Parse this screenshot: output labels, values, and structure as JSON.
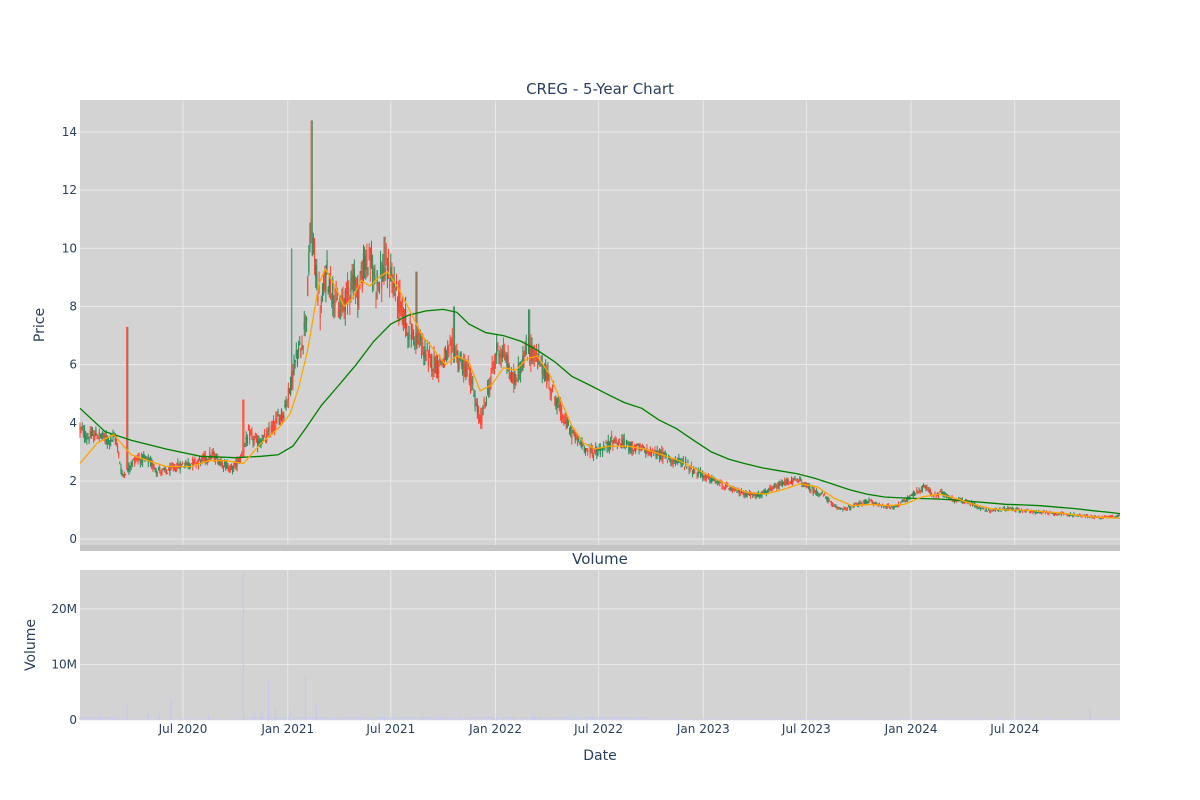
{
  "colors": {
    "plot_bg": "#d3d3d3",
    "grid": "#e8e8e8",
    "up": "#2e8b57",
    "down": "#ff4433",
    "ma_short": "#ffa500",
    "ma_long": "#008000",
    "volume": "#c8c8ee",
    "text": "#2a3f5f"
  },
  "chart_data": [
    {
      "type": "candlestick",
      "title": "CREG - 5-Year Chart",
      "ylabel": "Price",
      "ylim": [
        -0.2,
        15.1
      ],
      "yticks": [
        0,
        2,
        4,
        6,
        8,
        10,
        12,
        14
      ],
      "xlim": [
        "2020-01-02",
        "2025-01-02"
      ],
      "grid": true,
      "price_path": [
        [
          "2020-01-02",
          3.8
        ],
        [
          "2020-01-15",
          3.5
        ],
        [
          "2020-02-01",
          3.6
        ],
        [
          "2020-02-20",
          3.4
        ],
        [
          "2020-03-05",
          3.5
        ],
        [
          "2020-03-16",
          2.2
        ],
        [
          "2020-03-25",
          2.4
        ],
        [
          "2020-04-10",
          2.8
        ],
        [
          "2020-05-01",
          2.7
        ],
        [
          "2020-05-15",
          2.4
        ],
        [
          "2020-06-01",
          2.3
        ],
        [
          "2020-06-20",
          2.5
        ],
        [
          "2020-07-10",
          2.6
        ],
        [
          "2020-08-01",
          2.7
        ],
        [
          "2020-08-20",
          2.9
        ],
        [
          "2020-09-10",
          2.6
        ],
        [
          "2020-09-25",
          2.4
        ],
        [
          "2020-10-10",
          2.8
        ],
        [
          "2020-10-25",
          3.6
        ],
        [
          "2020-11-10",
          3.3
        ],
        [
          "2020-11-25",
          3.5
        ],
        [
          "2020-12-10",
          4.0
        ],
        [
          "2020-12-25",
          4.4
        ],
        [
          "2021-01-05",
          5.2
        ],
        [
          "2021-01-15",
          6.2
        ],
        [
          "2021-01-25",
          6.6
        ],
        [
          "2021-02-03",
          7.8
        ],
        [
          "2021-02-10",
          10.6
        ],
        [
          "2021-02-18",
          9.5
        ],
        [
          "2021-02-28",
          7.8
        ],
        [
          "2021-03-10",
          9.2
        ],
        [
          "2021-03-20",
          8.6
        ],
        [
          "2021-04-01",
          7.8
        ],
        [
          "2021-04-15",
          8.4
        ],
        [
          "2021-04-25",
          9.0
        ],
        [
          "2021-05-05",
          8.5
        ],
        [
          "2021-05-15",
          9.4
        ],
        [
          "2021-05-25",
          9.6
        ],
        [
          "2021-06-05",
          8.8
        ],
        [
          "2021-06-20",
          9.2
        ],
        [
          "2021-07-01",
          9.1
        ],
        [
          "2021-07-15",
          8.2
        ],
        [
          "2021-08-01",
          7.2
        ],
        [
          "2021-08-20",
          6.8
        ],
        [
          "2021-09-05",
          6.2
        ],
        [
          "2021-09-20",
          6.0
        ],
        [
          "2021-10-05",
          6.2
        ],
        [
          "2021-10-20",
          6.6
        ],
        [
          "2021-11-01",
          6.0
        ],
        [
          "2021-11-15",
          5.8
        ],
        [
          "2021-11-28",
          4.6
        ],
        [
          "2021-12-05",
          4.0
        ],
        [
          "2021-12-20",
          5.2
        ],
        [
          "2022-01-05",
          6.6
        ],
        [
          "2022-01-20",
          6.2
        ],
        [
          "2022-02-01",
          5.4
        ],
        [
          "2022-02-15",
          6.0
        ],
        [
          "2022-03-01",
          6.6
        ],
        [
          "2022-03-15",
          6.2
        ],
        [
          "2022-03-28",
          5.8
        ],
        [
          "2022-04-10",
          5.2
        ],
        [
          "2022-04-25",
          4.4
        ],
        [
          "2022-05-10",
          3.8
        ],
        [
          "2022-05-25",
          3.4
        ],
        [
          "2022-06-10",
          3.1
        ],
        [
          "2022-06-25",
          3.0
        ],
        [
          "2022-07-10",
          3.1
        ],
        [
          "2022-07-25",
          3.4
        ],
        [
          "2022-08-10",
          3.3
        ],
        [
          "2022-08-25",
          3.2
        ],
        [
          "2022-09-10",
          3.1
        ],
        [
          "2022-10-01",
          3.0
        ],
        [
          "2022-10-20",
          2.9
        ],
        [
          "2022-11-10",
          2.7
        ],
        [
          "2022-12-01",
          2.6
        ],
        [
          "2022-12-20",
          2.3
        ],
        [
          "2023-01-10",
          2.1
        ],
        [
          "2023-02-01",
          1.9
        ],
        [
          "2023-02-20",
          1.7
        ],
        [
          "2023-03-10",
          1.6
        ],
        [
          "2023-04-01",
          1.5
        ],
        [
          "2023-04-20",
          1.6
        ],
        [
          "2023-05-10",
          1.8
        ],
        [
          "2023-06-01",
          2.0
        ],
        [
          "2023-06-20",
          2.0
        ],
        [
          "2023-07-10",
          1.7
        ],
        [
          "2023-08-01",
          1.5
        ],
        [
          "2023-08-20",
          1.1
        ],
        [
          "2023-09-10",
          1.05
        ],
        [
          "2023-10-01",
          1.2
        ],
        [
          "2023-10-20",
          1.3
        ],
        [
          "2023-11-10",
          1.15
        ],
        [
          "2023-12-01",
          1.1
        ],
        [
          "2023-12-20",
          1.3
        ],
        [
          "2024-01-10",
          1.6
        ],
        [
          "2024-01-25",
          1.8
        ],
        [
          "2024-02-10",
          1.5
        ],
        [
          "2024-02-25",
          1.6
        ],
        [
          "2024-03-10",
          1.4
        ],
        [
          "2024-04-01",
          1.3
        ],
        [
          "2024-04-20",
          1.2
        ],
        [
          "2024-05-10",
          1.0
        ],
        [
          "2024-06-01",
          1.0
        ],
        [
          "2024-06-20",
          1.05
        ],
        [
          "2024-07-10",
          1.0
        ],
        [
          "2024-08-01",
          0.95
        ],
        [
          "2024-09-01",
          0.9
        ],
        [
          "2024-10-01",
          0.85
        ],
        [
          "2024-11-01",
          0.8
        ],
        [
          "2024-12-01",
          0.75
        ],
        [
          "2025-01-02",
          0.8
        ]
      ],
      "spikes": [
        [
          "2020-03-25",
          7.3
        ],
        [
          "2021-01-08",
          10.0
        ],
        [
          "2021-02-12",
          14.4
        ],
        [
          "2021-08-15",
          9.2
        ],
        [
          "2021-06-20",
          10.4
        ],
        [
          "2020-10-15",
          4.8
        ],
        [
          "2022-03-01",
          7.9
        ],
        [
          "2021-10-20",
          8.0
        ]
      ],
      "ma_short": {
        "name": "",
        "points": [
          [
            "2020-01-02",
            2.6
          ],
          [
            "2020-02-01",
            3.3
          ],
          [
            "2020-03-01",
            3.6
          ],
          [
            "2020-04-01",
            2.9
          ],
          [
            "2020-05-01",
            2.7
          ],
          [
            "2020-06-01",
            2.5
          ],
          [
            "2020-07-15",
            2.5
          ],
          [
            "2020-08-15",
            2.7
          ],
          [
            "2020-09-15",
            2.7
          ],
          [
            "2020-10-15",
            2.6
          ],
          [
            "2020-11-15",
            3.3
          ],
          [
            "2020-12-15",
            3.8
          ],
          [
            "2021-01-05",
            4.3
          ],
          [
            "2021-01-20",
            5.2
          ],
          [
            "2021-02-05",
            6.5
          ],
          [
            "2021-02-25",
            8.8
          ],
          [
            "2021-03-08",
            9.3
          ],
          [
            "2021-03-25",
            8.7
          ],
          [
            "2021-04-10",
            8.0
          ],
          [
            "2021-04-25",
            8.3
          ],
          [
            "2021-05-10",
            8.9
          ],
          [
            "2021-05-25",
            8.7
          ],
          [
            "2021-06-10",
            9.0
          ],
          [
            "2021-06-25",
            9.2
          ],
          [
            "2021-07-15",
            8.6
          ],
          [
            "2021-08-05",
            7.8
          ],
          [
            "2021-08-25",
            7.0
          ],
          [
            "2021-09-15",
            6.5
          ],
          [
            "2021-10-05",
            6.0
          ],
          [
            "2021-10-25",
            6.3
          ],
          [
            "2021-11-15",
            6.1
          ],
          [
            "2021-12-05",
            5.1
          ],
          [
            "2021-12-25",
            5.3
          ],
          [
            "2022-01-15",
            5.9
          ],
          [
            "2022-02-05",
            5.8
          ],
          [
            "2022-02-25",
            6.2
          ],
          [
            "2022-03-15",
            6.3
          ],
          [
            "2022-04-05",
            5.7
          ],
          [
            "2022-04-25",
            4.8
          ],
          [
            "2022-05-15",
            3.9
          ],
          [
            "2022-06-05",
            3.3
          ],
          [
            "2022-06-25",
            3.1
          ],
          [
            "2022-07-20",
            3.2
          ],
          [
            "2022-08-20",
            3.2
          ],
          [
            "2022-09-20",
            3.1
          ],
          [
            "2022-10-20",
            2.9
          ],
          [
            "2022-11-20",
            2.7
          ],
          [
            "2022-12-20",
            2.4
          ],
          [
            "2023-01-20",
            2.1
          ],
          [
            "2023-02-20",
            1.8
          ],
          [
            "2023-03-20",
            1.6
          ],
          [
            "2023-04-20",
            1.55
          ],
          [
            "2023-05-20",
            1.7
          ],
          [
            "2023-06-20",
            1.9
          ],
          [
            "2023-07-20",
            1.8
          ],
          [
            "2023-08-20",
            1.4
          ],
          [
            "2023-09-20",
            1.15
          ],
          [
            "2023-10-20",
            1.2
          ],
          [
            "2023-11-20",
            1.15
          ],
          [
            "2023-12-20",
            1.2
          ],
          [
            "2024-01-20",
            1.45
          ],
          [
            "2024-02-20",
            1.55
          ],
          [
            "2024-03-20",
            1.4
          ],
          [
            "2024-04-20",
            1.2
          ],
          [
            "2024-05-20",
            1.05
          ],
          [
            "2024-06-20",
            1.0
          ],
          [
            "2024-07-20",
            1.0
          ],
          [
            "2024-08-20",
            0.95
          ],
          [
            "2024-09-20",
            0.9
          ],
          [
            "2024-10-20",
            0.82
          ],
          [
            "2024-11-20",
            0.76
          ],
          [
            "2025-01-02",
            0.72
          ]
        ]
      },
      "ma_long": {
        "name": "",
        "points": [
          [
            "2020-01-02",
            4.5
          ],
          [
            "2020-02-15",
            3.7
          ],
          [
            "2020-04-01",
            3.4
          ],
          [
            "2020-06-01",
            3.1
          ],
          [
            "2020-08-01",
            2.85
          ],
          [
            "2020-10-01",
            2.8
          ],
          [
            "2020-11-15",
            2.85
          ],
          [
            "2020-12-15",
            2.9
          ],
          [
            "2021-01-10",
            3.2
          ],
          [
            "2021-02-01",
            3.8
          ],
          [
            "2021-03-01",
            4.6
          ],
          [
            "2021-04-01",
            5.3
          ],
          [
            "2021-05-01",
            6.0
          ],
          [
            "2021-06-01",
            6.8
          ],
          [
            "2021-07-01",
            7.4
          ],
          [
            "2021-08-01",
            7.7
          ],
          [
            "2021-09-01",
            7.85
          ],
          [
            "2021-10-01",
            7.9
          ],
          [
            "2021-10-25",
            7.8
          ],
          [
            "2021-11-15",
            7.4
          ],
          [
            "2021-12-15",
            7.1
          ],
          [
            "2022-01-15",
            7.0
          ],
          [
            "2022-02-15",
            6.8
          ],
          [
            "2022-03-15",
            6.5
          ],
          [
            "2022-04-15",
            6.1
          ],
          [
            "2022-05-15",
            5.6
          ],
          [
            "2022-06-15",
            5.3
          ],
          [
            "2022-07-15",
            5.0
          ],
          [
            "2022-08-15",
            4.7
          ],
          [
            "2022-09-15",
            4.5
          ],
          [
            "2022-10-15",
            4.1
          ],
          [
            "2022-11-15",
            3.8
          ],
          [
            "2022-12-15",
            3.4
          ],
          [
            "2023-01-15",
            3.0
          ],
          [
            "2023-02-15",
            2.75
          ],
          [
            "2023-03-15",
            2.6
          ],
          [
            "2023-04-15",
            2.45
          ],
          [
            "2023-05-15",
            2.35
          ],
          [
            "2023-06-15",
            2.25
          ],
          [
            "2023-07-15",
            2.1
          ],
          [
            "2023-08-15",
            1.9
          ],
          [
            "2023-09-15",
            1.7
          ],
          [
            "2023-10-15",
            1.55
          ],
          [
            "2023-11-15",
            1.45
          ],
          [
            "2023-12-15",
            1.42
          ],
          [
            "2024-01-15",
            1.4
          ],
          [
            "2024-02-15",
            1.38
          ],
          [
            "2024-03-15",
            1.35
          ],
          [
            "2024-04-15",
            1.3
          ],
          [
            "2024-05-15",
            1.25
          ],
          [
            "2024-06-15",
            1.2
          ],
          [
            "2024-07-15",
            1.18
          ],
          [
            "2024-08-15",
            1.15
          ],
          [
            "2024-09-15",
            1.1
          ],
          [
            "2024-10-15",
            1.05
          ],
          [
            "2024-11-15",
            0.98
          ],
          [
            "2024-12-15",
            0.92
          ],
          [
            "2025-01-02",
            0.88
          ]
        ]
      }
    },
    {
      "type": "bar",
      "title": "Volume",
      "ylabel": "Volume",
      "xlabel": "Date",
      "ylim": [
        0,
        27000000
      ],
      "yticks": [
        0,
        10000000,
        20000000
      ],
      "ytick_labels": [
        "0",
        "10M",
        "20M"
      ],
      "xticks": [
        "2020-07-01",
        "2021-01-01",
        "2021-07-01",
        "2022-01-01",
        "2022-07-01",
        "2023-01-01",
        "2023-07-01",
        "2024-01-01",
        "2024-07-01"
      ],
      "xtick_labels": [
        "Jul 2020",
        "Jan 2021",
        "Jul 2021",
        "Jan 2022",
        "Jul 2022",
        "Jan 2023",
        "Jul 2023",
        "Jan 2024",
        "Jul 2024"
      ],
      "spikes": [
        [
          "2020-03-25",
          2900000
        ],
        [
          "2020-05-01",
          1200000
        ],
        [
          "2020-05-20",
          900000
        ],
        [
          "2020-06-10",
          3800000
        ],
        [
          "2020-08-15",
          1000000
        ],
        [
          "2020-10-15",
          26500000
        ],
        [
          "2020-11-15",
          1500000
        ],
        [
          "2020-11-28",
          7000000
        ],
        [
          "2020-12-10",
          2200000
        ],
        [
          "2021-01-05",
          1800000
        ],
        [
          "2021-02-01",
          8000000
        ],
        [
          "2021-02-20",
          2800000
        ],
        [
          "2021-06-20",
          700000
        ],
        [
          "2021-09-15",
          500000
        ],
        [
          "2024-11-10",
          2000000
        ]
      ]
    }
  ]
}
